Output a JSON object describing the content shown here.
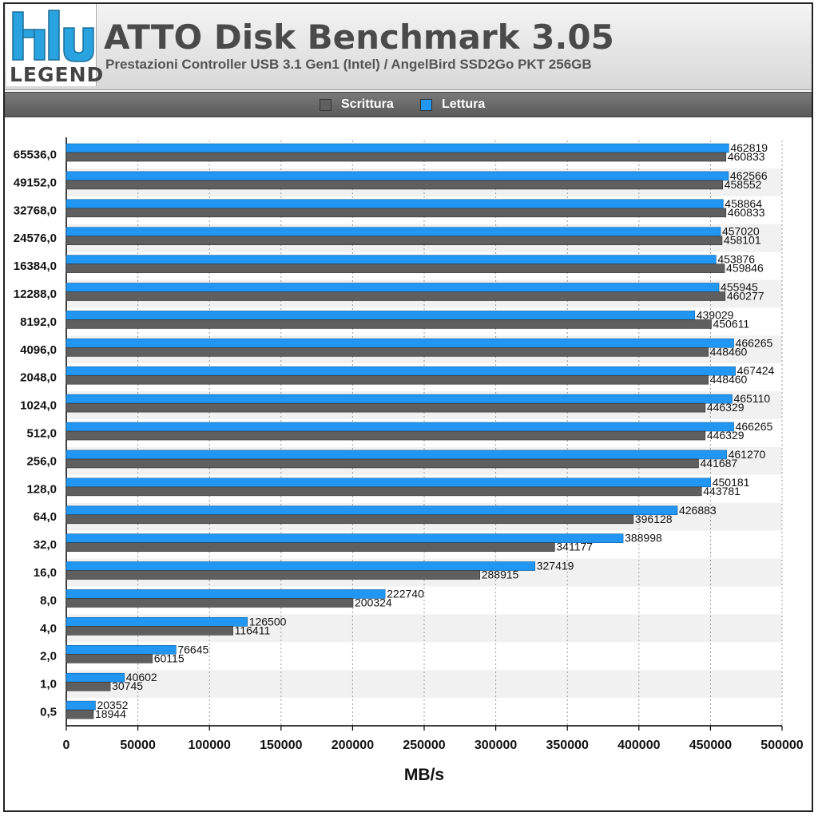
{
  "header": {
    "logo_text": "LEGEND",
    "title": "ATTO Disk Benchmark 3.05",
    "subtitle": "Prestazioni Controller USB 3.1 Gen1 (Intel) / AngelBird SSD2Go PKT 256GB"
  },
  "colors": {
    "scrittura": "#5f5f5f",
    "lettura": "#2196f3"
  },
  "chart_data": {
    "type": "bar",
    "orientation": "horizontal",
    "title": "ATTO Disk Benchmark 3.05",
    "subtitle": "Prestazioni Controller USB 3.1 Gen1 (Intel) / AngelBird SSD2Go PKT 256GB",
    "xlabel": "MB/s",
    "ylabel": "",
    "xlim": [
      0,
      500000
    ],
    "xticks": [
      0,
      50000,
      100000,
      150000,
      200000,
      250000,
      300000,
      350000,
      400000,
      450000,
      500000
    ],
    "grid": true,
    "legend_position": "top",
    "categories": [
      "65536,0",
      "49152,0",
      "32768,0",
      "24576,0",
      "16384,0",
      "12288,0",
      "8192,0",
      "4096,0",
      "2048,0",
      "1024,0",
      "512,0",
      "256,0",
      "128,0",
      "64,0",
      "32,0",
      "16,0",
      "8,0",
      "4,0",
      "2,0",
      "1,0",
      "0,5"
    ],
    "series": [
      {
        "name": "Scrittura",
        "values": [
          460833,
          458552,
          460833,
          458101,
          459846,
          460277,
          450611,
          448460,
          448460,
          446329,
          446329,
          441687,
          443781,
          396128,
          341177,
          288915,
          200324,
          116411,
          60115,
          30745,
          18944
        ]
      },
      {
        "name": "Lettura",
        "values": [
          462819,
          462566,
          458864,
          457020,
          453876,
          455945,
          439029,
          466265,
          467424,
          465110,
          466265,
          461270,
          450181,
          426883,
          388998,
          327419,
          222740,
          126500,
          76645,
          40602,
          20352
        ]
      }
    ]
  }
}
